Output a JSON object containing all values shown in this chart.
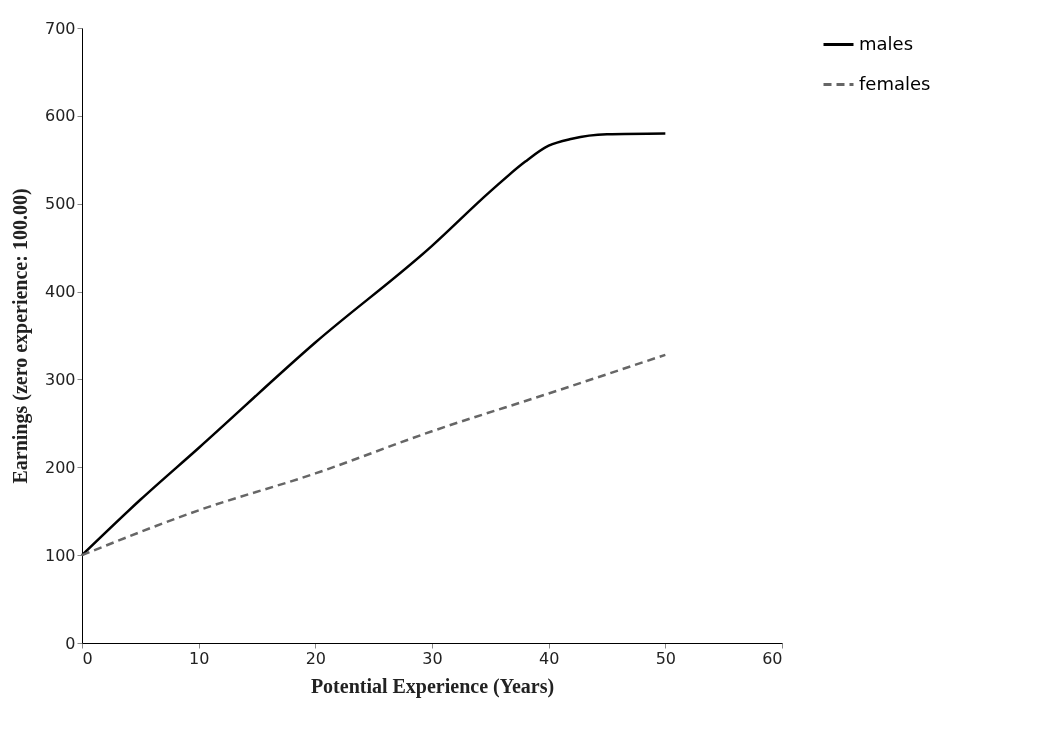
{
  "chart_data": {
    "type": "line",
    "xlabel": "Potential Experience (Years)",
    "ylabel": "Earnings (zero experience: 100.00)",
    "xlim": [
      0,
      60
    ],
    "xticks": [
      0,
      10,
      20,
      30,
      40,
      50,
      60
    ],
    "ylim": [
      0,
      700
    ],
    "yticks": [
      0,
      100,
      200,
      300,
      400,
      500,
      600,
      700
    ],
    "grid": false,
    "legend": "right",
    "line_style": "solid",
    "series": [
      {
        "name": "males",
        "color": "#000000",
        "x": [
          0,
          5,
          10,
          20,
          30,
          35,
          38,
          40,
          42,
          45,
          50
        ],
        "values": [
          100,
          163,
          222,
          342,
          452,
          514,
          548,
          566,
          574,
          579,
          580
        ]
      },
      {
        "name": "females",
        "color": "#666666",
        "line_style": "dashed",
        "x": [
          0,
          10,
          20,
          30,
          40,
          50
        ],
        "values": [
          100,
          151,
          193,
          241,
          284,
          328
        ]
      }
    ]
  }
}
